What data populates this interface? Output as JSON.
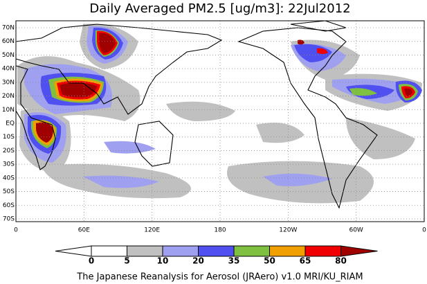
{
  "title": "Daily Averaged PM2.5 [ug/m3]: 22Jul2012",
  "lat_labels": [
    "70N",
    "60N",
    "50N",
    "40N",
    "30N",
    "20N",
    "10N",
    "EQ",
    "10S",
    "20S",
    "30S",
    "40S",
    "50S",
    "60S",
    "70S"
  ],
  "lon_labels": [
    "0",
    "60E",
    "120E",
    "180",
    "120W",
    "60W",
    "0"
  ],
  "colorbar": {
    "levels": [
      0,
      5,
      10,
      20,
      35,
      50,
      65,
      80
    ],
    "colors": [
      "#ffffff",
      "#ffffff",
      "#c0c0c0",
      "#a0a0f0",
      "#5050f0",
      "#80c040",
      "#f0a000",
      "#f00000",
      "#a00000"
    ]
  },
  "footer": "The Japanese Reanalysis for Aerosol (JRAero) v1.0 MRI/KU_RIAM"
}
